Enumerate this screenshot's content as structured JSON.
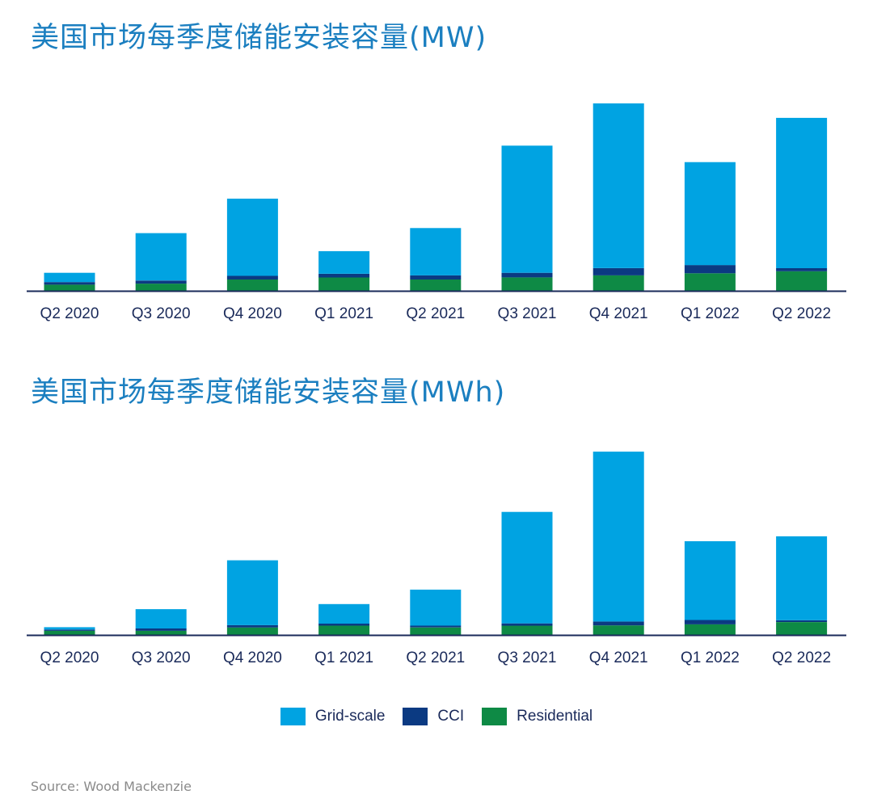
{
  "colors": {
    "grid_scale": "#00a3e2",
    "cci": "#0b3a82",
    "residential": "#0e8a45",
    "title": "#1b7fc0",
    "axis": "#1a2a5a"
  },
  "chart_data": [
    {
      "type": "bar",
      "stacked": true,
      "title": "美国市场每季度储能安装容量(MW)",
      "categories": [
        "Q2 2020",
        "Q3 2020",
        "Q4 2020",
        "Q1 2021",
        "Q2 2021",
        "Q3 2021",
        "Q4 2021",
        "Q1 2022",
        "Q2 2022"
      ],
      "series": [
        {
          "name": "Residential",
          "values": [
            60,
            70,
            110,
            130,
            110,
            130,
            150,
            170,
            190
          ]
        },
        {
          "name": "CCI",
          "values": [
            25,
            30,
            35,
            35,
            40,
            45,
            70,
            80,
            30
          ]
        },
        {
          "name": "Grid-scale",
          "values": [
            90,
            460,
            750,
            220,
            460,
            1235,
            1600,
            1000,
            1460
          ]
        }
      ],
      "ylim": [
        0,
        2040
      ]
    },
    {
      "type": "bar",
      "stacked": true,
      "title": "美国市场每季度储能安装容量(MWh)",
      "categories": [
        "Q2 2020",
        "Q3 2020",
        "Q4 2020",
        "Q1 2021",
        "Q2 2021",
        "Q3 2021",
        "Q4 2021",
        "Q1 2022",
        "Q2 2022"
      ],
      "series": [
        {
          "name": "Residential",
          "values": [
            160,
            160,
            290,
            360,
            290,
            360,
            370,
            410,
            500
          ]
        },
        {
          "name": "CCI",
          "values": [
            50,
            90,
            90,
            80,
            70,
            90,
            150,
            170,
            70
          ]
        },
        {
          "name": "Grid-scale",
          "values": [
            90,
            750,
            2520,
            760,
            1400,
            4330,
            6600,
            3060,
            3260
          ]
        }
      ],
      "ylim": [
        0,
        7750
      ]
    }
  ],
  "legend": [
    {
      "label": "Grid-scale",
      "color": "#00a3e2"
    },
    {
      "label": "CCI",
      "color": "#0b3a82"
    },
    {
      "label": "Residential",
      "color": "#0e8a45"
    }
  ],
  "source": "Source: Wood Mackenzie"
}
